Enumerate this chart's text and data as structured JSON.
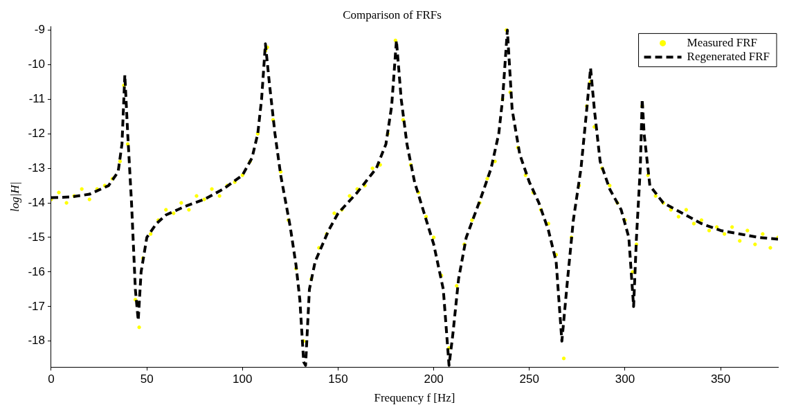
{
  "chart_data": {
    "type": "scatter",
    "title": "Comparison of FRFs",
    "xlabel": "Frequency f [Hz]",
    "ylabel": "log|H|",
    "xlim": [
      0,
      380
    ],
    "xticks": [
      0,
      50,
      100,
      150,
      200,
      250,
      300,
      350
    ],
    "ylim": [
      -18.75,
      -8.9
    ],
    "yticks": [
      -18,
      -17,
      -16,
      -15,
      -14,
      -13,
      -12,
      -11,
      -10,
      -9
    ],
    "grid": false,
    "legend": "top right",
    "series": [
      {
        "name": "Measured FRF",
        "type": "scatter",
        "marker": "circle",
        "color": "#ffff00",
        "x": [
          0,
          4,
          8,
          12,
          16,
          20,
          24,
          28,
          32,
          36,
          38,
          40,
          44,
          46,
          48,
          52,
          56,
          60,
          64,
          68,
          72,
          76,
          80,
          84,
          88,
          92,
          96,
          100,
          104,
          108,
          112,
          113,
          116,
          120,
          124,
          128,
          132,
          136,
          140,
          144,
          148,
          152,
          156,
          160,
          164,
          168,
          172,
          176,
          180,
          184,
          188,
          192,
          196,
          200,
          204,
          208,
          212,
          216,
          220,
          224,
          228,
          232,
          236,
          238,
          240,
          244,
          248,
          252,
          256,
          260,
          264,
          268,
          272,
          276,
          280,
          282,
          284,
          288,
          292,
          296,
          300,
          304,
          306,
          309,
          312,
          316,
          320,
          324,
          328,
          332,
          336,
          340,
          344,
          348,
          352,
          356,
          360,
          364,
          368,
          372,
          376,
          380
        ],
        "values": [
          -13.9,
          -13.7,
          -14.0,
          -13.8,
          -13.6,
          -13.9,
          -13.6,
          -13.5,
          -13.3,
          -12.8,
          -10.6,
          -12.3,
          -16.8,
          -17.6,
          -15.6,
          -14.9,
          -14.5,
          -14.2,
          -14.3,
          -14.0,
          -14.2,
          -13.8,
          -13.9,
          -13.6,
          -13.8,
          -13.5,
          -13.4,
          -13.2,
          -12.8,
          -12.0,
          -9.6,
          -9.5,
          -11.6,
          -13.1,
          -14.5,
          -15.9,
          -18.0,
          -16.2,
          -15.3,
          -14.9,
          -14.3,
          -14.2,
          -13.8,
          -13.6,
          -13.5,
          -13.0,
          -12.9,
          -12.0,
          -9.3,
          -11.6,
          -12.9,
          -13.7,
          -14.4,
          -15.0,
          -16.1,
          -18.2,
          -16.4,
          -15.2,
          -14.5,
          -14.0,
          -13.3,
          -12.8,
          -11.0,
          -9.0,
          -10.8,
          -12.4,
          -13.2,
          -13.7,
          -14.2,
          -14.6,
          -15.5,
          -18.5,
          -15.0,
          -13.5,
          -11.2,
          -10.5,
          -11.8,
          -13.0,
          -13.5,
          -14.0,
          -14.5,
          -16.0,
          -15.2,
          -11.2,
          -13.2,
          -13.8,
          -14.0,
          -14.2,
          -14.4,
          -14.2,
          -14.6,
          -14.5,
          -14.8,
          -14.7,
          -14.9,
          -14.7,
          -15.1,
          -14.8,
          -15.2,
          -14.9,
          -15.3,
          -15.0
        ]
      },
      {
        "name": "Regenerated FRF",
        "type": "line",
        "marker": "none",
        "line_style": "dashed",
        "color": "#000000",
        "x": [
          0,
          10,
          20,
          30,
          35,
          37,
          38.5,
          40,
          42,
          44,
          45.5,
          47,
          50,
          55,
          60,
          70,
          80,
          90,
          100,
          105,
          108,
          110,
          112,
          114,
          117,
          120,
          125,
          128,
          130,
          132,
          133,
          135,
          138,
          145,
          150,
          160,
          170,
          175,
          178,
          180.5,
          183,
          186,
          190,
          195,
          200,
          205,
          208,
          210,
          213,
          217,
          225,
          230,
          234,
          236,
          238.5,
          241,
          245,
          250,
          255,
          260,
          264,
          267,
          270,
          273,
          277,
          280,
          282,
          284,
          287,
          292,
          298,
          302,
          304.5,
          306,
          308,
          309,
          310,
          313,
          320,
          330,
          340,
          350,
          360,
          370,
          380
        ],
        "values": [
          -13.85,
          -13.83,
          -13.75,
          -13.5,
          -13.1,
          -12.3,
          -10.3,
          -12,
          -14,
          -16.5,
          -17.4,
          -16,
          -15,
          -14.6,
          -14.35,
          -14.1,
          -13.9,
          -13.6,
          -13.2,
          -12.7,
          -12,
          -11,
          -9.4,
          -10.5,
          -12,
          -13.2,
          -14.7,
          -15.8,
          -16.8,
          -18.6,
          -18.7,
          -16.5,
          -15.7,
          -14.8,
          -14.3,
          -13.7,
          -13,
          -12.3,
          -11.2,
          -9.3,
          -11,
          -12.3,
          -13.4,
          -14.3,
          -15.2,
          -16.5,
          -18.7,
          -17.8,
          -16.2,
          -15,
          -13.8,
          -13,
          -12,
          -11,
          -9.0,
          -11.3,
          -12.6,
          -13.4,
          -14,
          -14.8,
          -15.7,
          -18,
          -16.2,
          -14.5,
          -13,
          -11.3,
          -10.1,
          -11.3,
          -12.8,
          -13.6,
          -14.2,
          -15,
          -17,
          -15,
          -13,
          -11,
          -12,
          -13.5,
          -14,
          -14.3,
          -14.6,
          -14.8,
          -14.9,
          -15,
          -15.05
        ]
      }
    ]
  }
}
